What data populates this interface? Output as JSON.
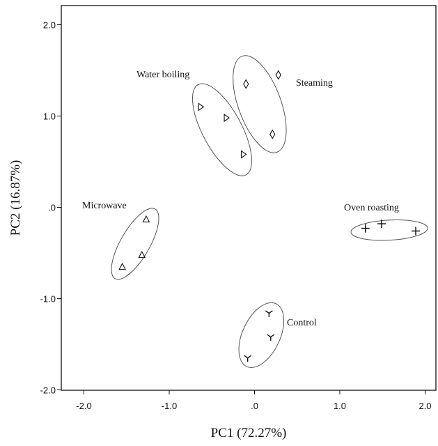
{
  "chart_data": {
    "type": "scatter",
    "title": "",
    "xlabel": "PC1 (72.27%)",
    "ylabel": "PC2 (16.87%)",
    "xlim": [
      -2.25,
      2.25
    ],
    "ylim": [
      -2.0,
      2.2
    ],
    "xticks": [
      -2.0,
      -1.0,
      0.0,
      1.0,
      2.0
    ],
    "xtick_labels": [
      "-2.0",
      "-1.0",
      ".0",
      "1.0",
      "2.0"
    ],
    "yticks": [
      -2.0,
      -1.0,
      0.0,
      1.0,
      2.0
    ],
    "ytick_labels": [
      "-2.0",
      "-1.0",
      ".0",
      "1.0",
      "2.0"
    ],
    "grid": false,
    "colors": {
      "ink": "#111111",
      "ellipse": "#555555"
    },
    "series": [
      {
        "name": "Water boiling",
        "marker": "triangle-right",
        "points": [
          {
            "x": -0.63,
            "y": 1.1
          },
          {
            "x": -0.33,
            "y": 0.98
          },
          {
            "x": -0.13,
            "y": 0.58
          }
        ],
        "ellipse": {
          "cx": -0.38,
          "cy": 0.85,
          "rx": 0.23,
          "ry": 0.56,
          "angle_deg": -28
        }
      },
      {
        "name": "Steaming",
        "marker": "diamond",
        "points": [
          {
            "x": -0.1,
            "y": 1.35
          },
          {
            "x": 0.28,
            "y": 1.45
          },
          {
            "x": 0.21,
            "y": 0.8
          }
        ],
        "ellipse": {
          "cx": 0.06,
          "cy": 1.13,
          "rx": 0.25,
          "ry": 0.56,
          "angle_deg": -20
        }
      },
      {
        "name": "Microwave",
        "marker": "triangle-up",
        "points": [
          {
            "x": -1.27,
            "y": -0.13
          },
          {
            "x": -1.32,
            "y": -0.52
          },
          {
            "x": -1.55,
            "y": -0.65
          }
        ],
        "ellipse": {
          "cx": -1.4,
          "cy": -0.4,
          "rx": 0.17,
          "ry": 0.44,
          "angle_deg": 30
        }
      },
      {
        "name": "Oven roasting",
        "marker": "plus",
        "points": [
          {
            "x": 1.3,
            "y": -0.23
          },
          {
            "x": 1.49,
            "y": -0.18
          },
          {
            "x": 1.89,
            "y": -0.26
          }
        ],
        "ellipse": {
          "cx": 1.58,
          "cy": -0.25,
          "rx": 0.45,
          "ry": 0.11,
          "angle_deg": -3
        }
      },
      {
        "name": "Control",
        "marker": "tri-down",
        "points": [
          {
            "x": 0.17,
            "y": -1.16
          },
          {
            "x": 0.19,
            "y": -1.42
          },
          {
            "x": -0.08,
            "y": -1.65
          }
        ],
        "ellipse": {
          "cx": 0.08,
          "cy": -1.4,
          "rx": 0.22,
          "ry": 0.38,
          "angle_deg": 25
        }
      }
    ]
  }
}
